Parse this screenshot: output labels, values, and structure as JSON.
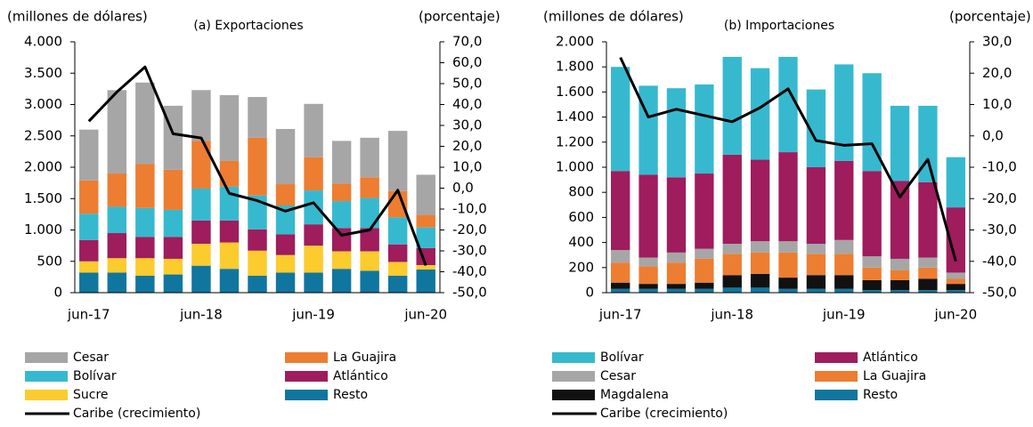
{
  "chart_data": [
    {
      "type": "bar",
      "stacked": true,
      "title": "(a) Exportaciones",
      "ylabel": "(millones de dólares)",
      "y2label": "(porcentaje)",
      "categories": [
        "jun-17",
        null,
        null,
        null,
        "jun-18",
        null,
        null,
        null,
        "jun-19",
        null,
        null,
        null,
        "jun-20"
      ],
      "series": [
        {
          "name": "Cesar",
          "color": "#a6a6a6",
          "values": [
            810,
            1330,
            1300,
            1020,
            810,
            1050,
            650,
            880,
            850,
            680,
            630,
            960,
            640
          ]
        },
        {
          "name": "La Guajira",
          "color": "#ed7d31",
          "values": [
            530,
            530,
            700,
            640,
            760,
            410,
            920,
            340,
            530,
            280,
            330,
            420,
            200
          ]
        },
        {
          "name": "Bolívar",
          "color": "#36b9cf",
          "values": [
            420,
            420,
            460,
            430,
            510,
            540,
            540,
            460,
            540,
            430,
            480,
            430,
            330
          ]
        },
        {
          "name": "Atlántico",
          "color": "#9f1c5d",
          "values": [
            340,
            400,
            340,
            350,
            370,
            350,
            340,
            330,
            340,
            370,
            370,
            280,
            270
          ]
        },
        {
          "name": "Sucre",
          "color": "#fccb2e",
          "values": [
            180,
            230,
            280,
            250,
            350,
            420,
            400,
            280,
            430,
            280,
            310,
            220,
            70
          ]
        },
        {
          "name": "Resto",
          "color": "#10769f",
          "values": [
            320,
            320,
            270,
            290,
            430,
            380,
            270,
            320,
            320,
            380,
            350,
            270,
            370
          ]
        },
        {
          "name": "Caribe (crecimiento)",
          "color": "#000000",
          "type": "line",
          "axis": "y2",
          "values": [
            32,
            46,
            58,
            26,
            24,
            -2.5,
            -6,
            -11,
            -7,
            -22.5,
            -20,
            -1,
            -37
          ]
        }
      ],
      "ylim": [
        0,
        4000
      ],
      "yticks": [
        0,
        500,
        {
          "value": 1000,
          "label": "1.000"
        },
        {
          "value": 1500,
          "label": "1.500"
        },
        {
          "value": 2000,
          "label": "2.000"
        },
        {
          "value": 2500,
          "label": "2.500"
        },
        {
          "value": 3000,
          "label": "3.000"
        },
        {
          "value": 3500,
          "label": "3.500"
        },
        {
          "value": 4000,
          "label": "4.000"
        }
      ],
      "y2lim": [
        -50,
        70
      ],
      "y2ticks": [
        {
          "value": -50,
          "label": "-50,0"
        },
        {
          "value": -40,
          "label": "-40,0"
        },
        {
          "value": -30,
          "label": "-30,0"
        },
        {
          "value": -20,
          "label": "-20,0"
        },
        {
          "value": -10,
          "label": "-10,0"
        },
        {
          "value": 0,
          "label": "0,0"
        },
        {
          "value": 10,
          "label": "10,0"
        },
        {
          "value": 20,
          "label": "20,0"
        },
        {
          "value": 30,
          "label": "30,0"
        },
        {
          "value": 40,
          "label": "40,0"
        },
        {
          "value": 50,
          "label": "50,0"
        },
        {
          "value": 60,
          "label": "60,0"
        },
        {
          "value": 70,
          "label": "70,0"
        }
      ]
    },
    {
      "type": "bar",
      "stacked": true,
      "title": "(b) Importaciones",
      "ylabel": "(millones de dólares)",
      "y2label": "(porcentaje)",
      "categories": [
        "jun-17",
        null,
        null,
        null,
        "jun-18",
        null,
        null,
        null,
        "jun-19",
        null,
        null,
        null,
        "jun-20"
      ],
      "series": [
        {
          "name": "Bolívar",
          "color": "#36b9cf",
          "values": [
            830,
            710,
            710,
            710,
            780,
            730,
            760,
            620,
            770,
            780,
            600,
            610,
            400
          ]
        },
        {
          "name": "Atlántico",
          "color": "#9f1c5d",
          "values": [
            630,
            660,
            600,
            600,
            710,
            650,
            710,
            610,
            630,
            680,
            620,
            600,
            520
          ]
        },
        {
          "name": "Cesar",
          "color": "#a6a6a6",
          "values": [
            100,
            70,
            80,
            80,
            80,
            90,
            90,
            80,
            110,
            90,
            90,
            80,
            50
          ]
        },
        {
          "name": "La Guajira",
          "color": "#ed7d31",
          "values": [
            160,
            140,
            170,
            190,
            170,
            170,
            200,
            170,
            170,
            100,
            80,
            90,
            40
          ]
        },
        {
          "name": "Magdalena",
          "color": "#111111",
          "values": [
            50,
            40,
            40,
            50,
            100,
            110,
            90,
            110,
            110,
            80,
            80,
            90,
            50
          ]
        },
        {
          "name": "Resto",
          "color": "#10769f",
          "values": [
            30,
            30,
            30,
            30,
            40,
            40,
            30,
            30,
            30,
            20,
            20,
            20,
            20
          ]
        },
        {
          "name": "Caribe (crecimiento)",
          "color": "#000000",
          "type": "line",
          "axis": "y2",
          "values": [
            25,
            6,
            8.5,
            6.5,
            4.5,
            9,
            15,
            -1.5,
            -3,
            -2.5,
            -19.5,
            -7.5,
            -40
          ]
        }
      ],
      "ylim": [
        0,
        2000
      ],
      "yticks": [
        0,
        200,
        400,
        600,
        800,
        {
          "value": 1000,
          "label": "1.000"
        },
        {
          "value": 1200,
          "label": "1.200"
        },
        {
          "value": 1400,
          "label": "1.400"
        },
        {
          "value": 1600,
          "label": "1.600"
        },
        {
          "value": 1800,
          "label": "1.800"
        },
        {
          "value": 2000,
          "label": "2.000"
        }
      ],
      "y2lim": [
        -50,
        30
      ],
      "y2ticks": [
        {
          "value": -50,
          "label": "-50,0"
        },
        {
          "value": -40,
          "label": "-40,0"
        },
        {
          "value": -30,
          "label": "-30,0"
        },
        {
          "value": -20,
          "label": "-20,0"
        },
        {
          "value": -10,
          "label": "-10,0"
        },
        {
          "value": 0,
          "label": "0,0"
        },
        {
          "value": 10,
          "label": "10,0"
        },
        {
          "value": 20,
          "label": "20,0"
        },
        {
          "value": 30,
          "label": "30,0"
        }
      ]
    }
  ]
}
